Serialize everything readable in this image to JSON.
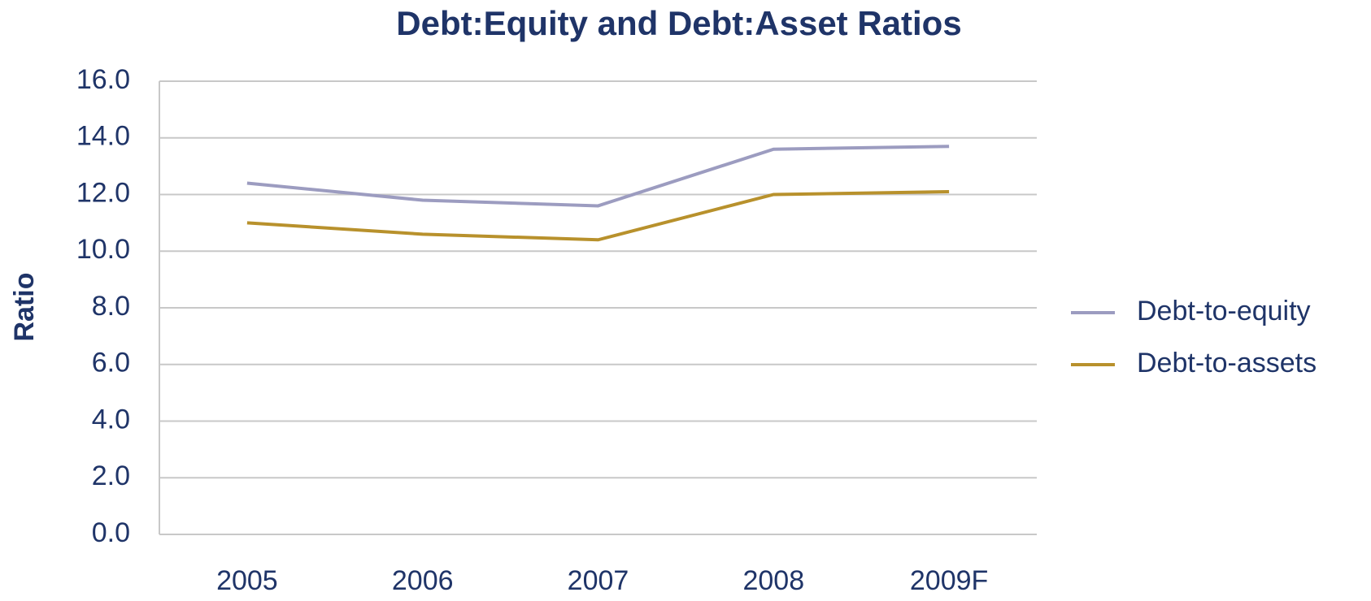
{
  "chart_data": {
    "type": "line",
    "title": "Debt:Equity and Debt:Asset Ratios",
    "y_label": "Ratio",
    "categories": [
      "2005",
      "2006",
      "2007",
      "2008",
      "2009F"
    ],
    "series": [
      {
        "name": "Debt-to-equity",
        "color": "#9c9cc0",
        "values": [
          12.4,
          11.8,
          11.6,
          13.6,
          13.7
        ]
      },
      {
        "name": "Debt-to-assets",
        "color": "#b8912c",
        "values": [
          11.0,
          10.6,
          10.4,
          12.0,
          12.1
        ]
      }
    ],
    "ylim": [
      0,
      16
    ],
    "yticks": [
      {
        "value": 0,
        "label": "0.0"
      },
      {
        "value": 2,
        "label": "2.0"
      },
      {
        "value": 4,
        "label": "4.0"
      },
      {
        "value": 6,
        "label": "6.0"
      },
      {
        "value": 8,
        "label": "8.0"
      },
      {
        "value": 10,
        "label": "10.0"
      },
      {
        "value": 12,
        "label": "12.0"
      },
      {
        "value": 14,
        "label": "14.0"
      },
      {
        "value": 16,
        "label": "16.0"
      }
    ],
    "grid": true,
    "legend": "right"
  }
}
